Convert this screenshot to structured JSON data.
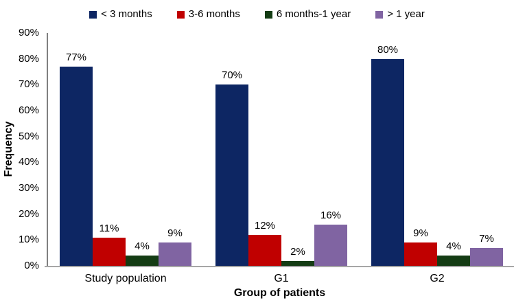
{
  "chart_data": {
    "type": "bar",
    "title": "",
    "xlabel": "Group of patients",
    "ylabel": "Frequency",
    "categories": [
      "Study population",
      "G1",
      "G2"
    ],
    "series": [
      {
        "name": "< 3 months",
        "color": "#0d2663",
        "values": [
          77,
          70,
          80
        ]
      },
      {
        "name": "3-6 months",
        "color": "#c00000",
        "values": [
          11,
          12,
          9
        ]
      },
      {
        "name": "6 months-1 year",
        "color": "#143c14",
        "values": [
          4,
          2,
          4
        ]
      },
      {
        "name": "> 1 year",
        "color": "#8064a2",
        "values": [
          9,
          16,
          7
        ]
      }
    ],
    "value_labels": [
      [
        "77%",
        "70%",
        "80%"
      ],
      [
        "11%",
        "12%",
        "9%"
      ],
      [
        "4%",
        "2%",
        "4%"
      ],
      [
        "9%",
        "16%",
        "7%"
      ]
    ],
    "ylim": [
      0,
      90
    ],
    "yticks": [
      "0%",
      "10%",
      "20%",
      "30%",
      "40%",
      "50%",
      "60%",
      "70%",
      "80%",
      "90%"
    ],
    "ytick_values": [
      0,
      10,
      20,
      30,
      40,
      50,
      60,
      70,
      80,
      90
    ],
    "legend_position": "top",
    "grid": false,
    "axis_colors": {
      "y_axis_line": "#808080",
      "x_axis_line": "#a6a6a6"
    }
  }
}
